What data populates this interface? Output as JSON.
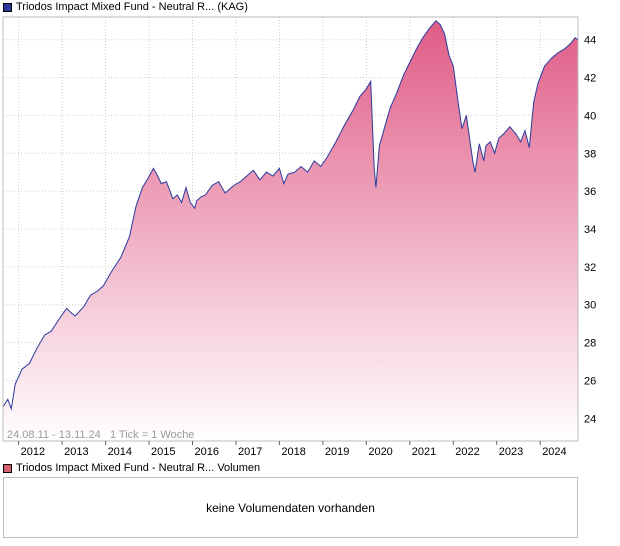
{
  "legend_top": {
    "label": "Triodos Impact Mixed Fund - Neutral R... (KAG)",
    "swatch_color": "#2a3a9e"
  },
  "legend_bottom": {
    "label": "Triodos Impact Mixed Fund - Neutral R... Volumen",
    "swatch_color": "#d9606f"
  },
  "footnote": "24.08.11 - 13.11.24   1 Tick = 1 Woche",
  "volume_panel": {
    "message": "keine Volumendaten vorhanden"
  },
  "colors": {
    "line": "#2a3a9e",
    "fill_top": "#e05c86",
    "fill_bottom": "#ffffff",
    "grid": "#cccccc"
  },
  "chart_data": {
    "type": "area",
    "xlim": [
      2011.64,
      2024.87
    ],
    "ylim": [
      22.8,
      45.2
    ],
    "y_ticks": [
      24,
      26,
      28,
      30,
      32,
      34,
      36,
      38,
      40,
      42,
      44
    ],
    "x_ticks": [
      "2012",
      "2013",
      "2014",
      "2015",
      "2016",
      "2017",
      "2018",
      "2019",
      "2020",
      "2021",
      "2022",
      "2023",
      "2024"
    ],
    "grid": true,
    "x": [
      2011.64,
      2011.75,
      2011.83,
      2011.92,
      2012.08,
      2012.25,
      2012.42,
      2012.6,
      2012.75,
      2012.92,
      2013.1,
      2013.3,
      2013.5,
      2013.65,
      2013.8,
      2013.95,
      2014.15,
      2014.35,
      2014.55,
      2014.7,
      2014.85,
      2014.98,
      2015.1,
      2015.2,
      2015.28,
      2015.4,
      2015.55,
      2015.65,
      2015.75,
      2015.85,
      2015.95,
      2016.05,
      2016.1,
      2016.2,
      2016.3,
      2016.45,
      2016.6,
      2016.75,
      2016.85,
      2016.95,
      2017.1,
      2017.25,
      2017.4,
      2017.55,
      2017.7,
      2017.85,
      2018.0,
      2018.1,
      2018.2,
      2018.35,
      2018.5,
      2018.65,
      2018.8,
      2018.95,
      2019.1,
      2019.3,
      2019.5,
      2019.7,
      2019.85,
      2020.0,
      2020.1,
      2020.18,
      2020.22,
      2020.3,
      2020.4,
      2020.55,
      2020.7,
      2020.85,
      2021.0,
      2021.15,
      2021.3,
      2021.45,
      2021.6,
      2021.7,
      2021.8,
      2021.9,
      2022.0,
      2022.1,
      2022.2,
      2022.3,
      2022.45,
      2022.5,
      2022.6,
      2022.7,
      2022.75,
      2022.85,
      2022.95,
      2023.05,
      2023.15,
      2023.3,
      2023.45,
      2023.55,
      2023.65,
      2023.75,
      2023.85,
      2023.95,
      2024.1,
      2024.25,
      2024.4,
      2024.55,
      2024.7,
      2024.8,
      2024.87
    ],
    "y": [
      24.6,
      25.0,
      24.5,
      25.8,
      26.6,
      26.9,
      27.7,
      28.4,
      28.6,
      29.2,
      29.8,
      29.4,
      29.9,
      30.5,
      30.7,
      31.0,
      31.8,
      32.5,
      33.6,
      35.2,
      36.2,
      36.7,
      37.2,
      36.8,
      36.4,
      36.5,
      35.6,
      35.8,
      35.4,
      36.2,
      35.4,
      35.1,
      35.5,
      35.7,
      35.8,
      36.3,
      36.5,
      35.9,
      36.1,
      36.3,
      36.5,
      36.8,
      37.1,
      36.6,
      37.0,
      36.8,
      37.2,
      36.4,
      36.9,
      37.0,
      37.3,
      37.0,
      37.6,
      37.3,
      37.8,
      38.6,
      39.5,
      40.3,
      41.0,
      41.4,
      41.8,
      37.2,
      36.2,
      38.4,
      39.2,
      40.4,
      41.2,
      42.1,
      42.8,
      43.5,
      44.1,
      44.6,
      45.0,
      44.8,
      44.3,
      43.2,
      42.6,
      40.9,
      39.3,
      40.0,
      37.6,
      37.0,
      38.5,
      37.6,
      38.4,
      38.6,
      38.0,
      38.8,
      39.0,
      39.4,
      39.0,
      38.6,
      39.2,
      38.3,
      40.7,
      41.7,
      42.6,
      43.0,
      43.3,
      43.5,
      43.8,
      44.1,
      44.0
    ]
  }
}
